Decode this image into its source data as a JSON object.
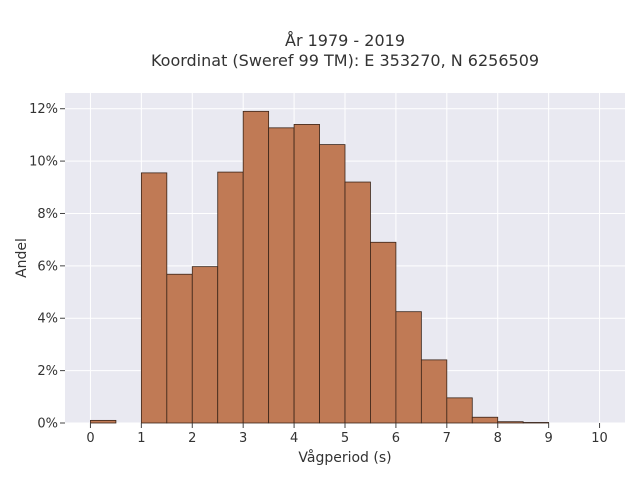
{
  "chart_data": {
    "type": "bar",
    "title": "År 1979 - 2019",
    "subtitle": "Koordinat (Sweref 99 TM): E 353270, N 6256509",
    "xlabel": "Vågperiod (s)",
    "ylabel": "Andel",
    "xlim": [
      -0.5,
      10.5
    ],
    "ylim": [
      0,
      12.6
    ],
    "xticks": [
      "0",
      "1",
      "2",
      "3",
      "4",
      "5",
      "6",
      "7",
      "8",
      "9",
      "10"
    ],
    "yticks": [
      "0%",
      "2%",
      "4%",
      "6%",
      "8%",
      "10%",
      "12%"
    ],
    "bin_width": 0.5,
    "bins": [
      {
        "x0": 0.0,
        "value": 0.1
      },
      {
        "x0": 0.5,
        "value": 0.0
      },
      {
        "x0": 1.0,
        "value": 9.55
      },
      {
        "x0": 1.5,
        "value": 5.68
      },
      {
        "x0": 2.0,
        "value": 5.97
      },
      {
        "x0": 2.5,
        "value": 9.58
      },
      {
        "x0": 3.0,
        "value": 11.9
      },
      {
        "x0": 3.5,
        "value": 11.27
      },
      {
        "x0": 4.0,
        "value": 11.4
      },
      {
        "x0": 4.5,
        "value": 10.63
      },
      {
        "x0": 5.0,
        "value": 9.2
      },
      {
        "x0": 5.5,
        "value": 6.9
      },
      {
        "x0": 6.0,
        "value": 4.25
      },
      {
        "x0": 6.5,
        "value": 2.41
      },
      {
        "x0": 7.0,
        "value": 0.96
      },
      {
        "x0": 7.5,
        "value": 0.22
      },
      {
        "x0": 8.0,
        "value": 0.05
      },
      {
        "x0": 8.5,
        "value": 0.02
      }
    ],
    "grid": true,
    "bar_color": "#c07a55",
    "bar_edge_color": "#3a2418",
    "plot_background": "#e9e9f1"
  }
}
